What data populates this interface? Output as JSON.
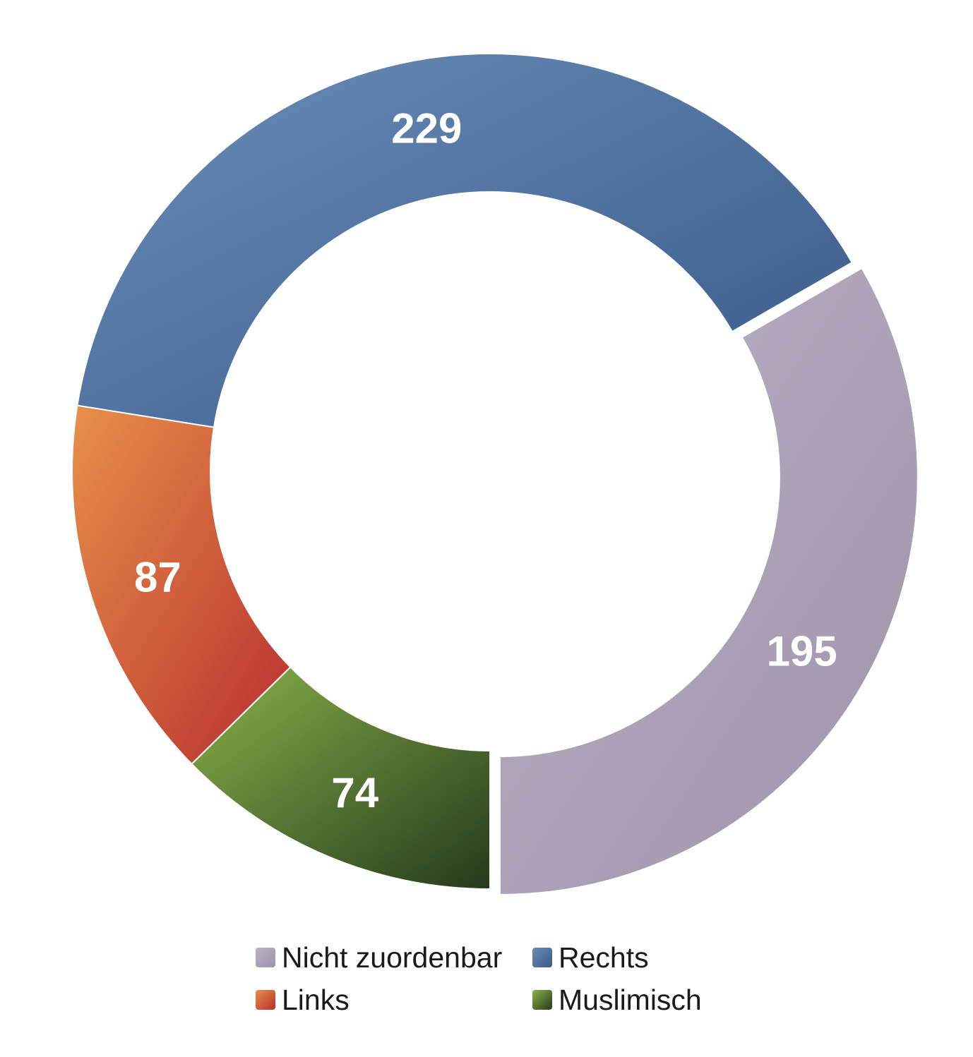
{
  "chart_data": {
    "type": "pie",
    "variant": "donut",
    "categories": [
      "Rechts",
      "Nicht zuordenbar",
      "Muslimisch",
      "Links"
    ],
    "values": [
      229,
      195,
      74,
      87
    ],
    "colors": {
      "Rechts": "#4f72a0",
      "Nicht zuordenbar": "#aea1b6",
      "Muslimisch": "#4f7a35",
      "Links": "#cf5632"
    },
    "gradients": {
      "Rechts": [
        "#6a8db8",
        "#3a5a88"
      ],
      "Nicht zuordenbar": [
        "#bbb0c4",
        "#9f93aa"
      ],
      "Muslimisch": [
        "#8ab24a",
        "#253a1c"
      ],
      "Links": [
        "#e8904a",
        "#b82e2e"
      ]
    },
    "exploded": [
      "Nicht zuordenbar"
    ],
    "data_labels": true,
    "legend_position": "bottom",
    "legend": [
      {
        "label": "Nicht zuordenbar",
        "color": "#aea1b6"
      },
      {
        "label": "Rechts",
        "color": "#4f72a0"
      },
      {
        "label": "Links",
        "color": "#cf5632"
      },
      {
        "label": "Muslimisch",
        "color": "#4f7a35"
      }
    ]
  }
}
